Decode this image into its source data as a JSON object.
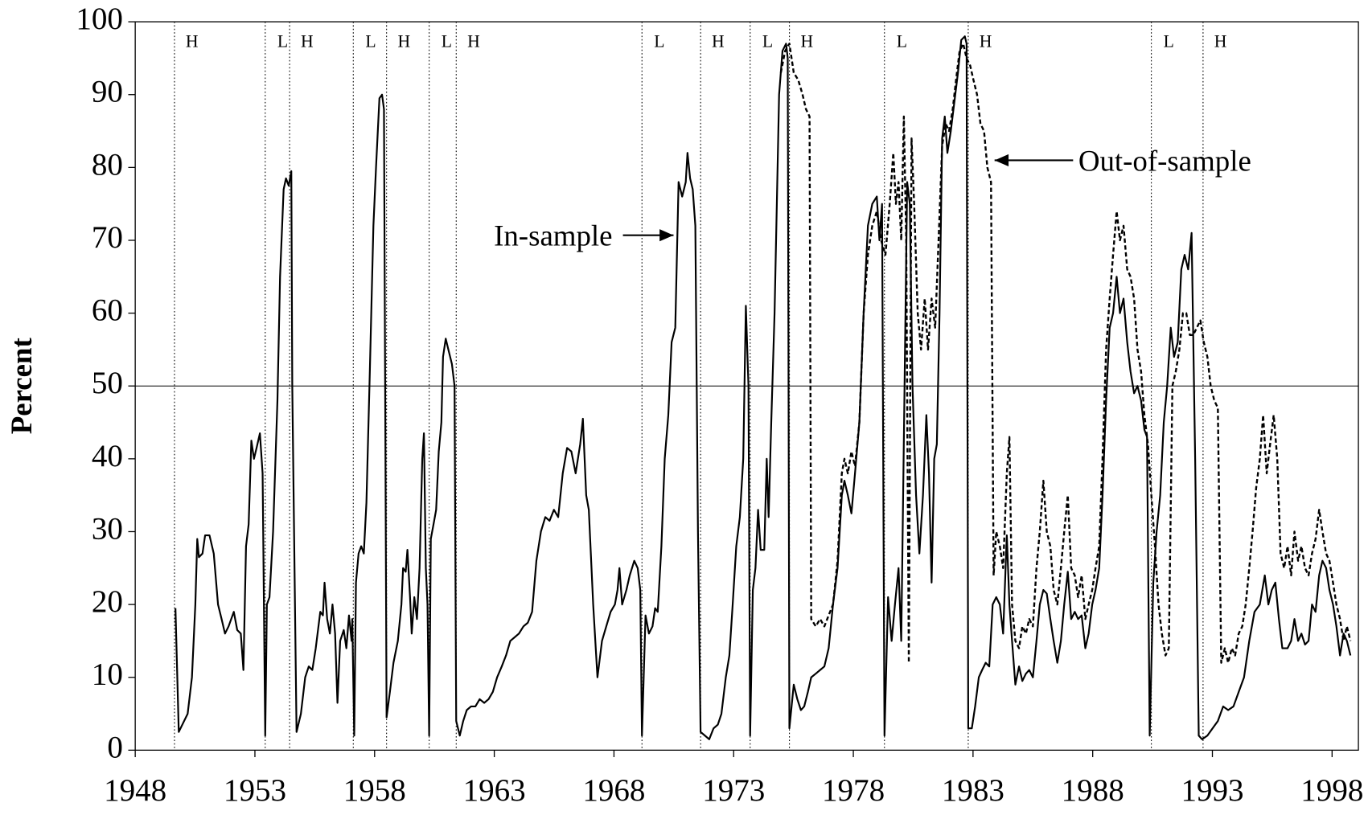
{
  "chart_data": {
    "type": "line",
    "ylabel": "Percent",
    "xlim": [
      1948,
      1999.1
    ],
    "xticks": [
      1948,
      1953,
      1958,
      1963,
      1968,
      1973,
      1978,
      1983,
      1988,
      1993,
      1998
    ],
    "ylim": [
      0,
      100
    ],
    "yticks": [
      0,
      10,
      20,
      30,
      40,
      50,
      60,
      70,
      80,
      90,
      100
    ],
    "reference_line": 50,
    "regimes": [
      {
        "start": 1949.64,
        "label": "H"
      },
      {
        "start": 1953.43,
        "label": "L"
      },
      {
        "start": 1954.45,
        "label": "H"
      },
      {
        "start": 1957.11,
        "label": "L"
      },
      {
        "start": 1958.5,
        "label": "H"
      },
      {
        "start": 1960.28,
        "label": "L"
      },
      {
        "start": 1961.41,
        "label": "H"
      },
      {
        "start": 1969.17,
        "label": "L"
      },
      {
        "start": 1971.62,
        "label": "H"
      },
      {
        "start": 1973.69,
        "label": "L"
      },
      {
        "start": 1975.33,
        "label": "H"
      },
      {
        "start": 1979.3,
        "label": "L"
      },
      {
        "start": 1982.8,
        "label": "H"
      },
      {
        "start": 1990.45,
        "label": "L"
      },
      {
        "start": 1992.61,
        "label": "H"
      }
    ],
    "series": [
      {
        "name": "In-sample",
        "color": "#000000",
        "line_style": "solid",
        "x": [
          1949.68,
          1949.82,
          1950.19,
          1950.37,
          1950.51,
          1950.59,
          1950.66,
          1950.81,
          1950.92,
          1951.1,
          1951.28,
          1951.46,
          1951.61,
          1951.75,
          1951.9,
          1952.12,
          1952.26,
          1952.41,
          1952.52,
          1952.63,
          1952.74,
          1952.85,
          1952.96,
          1953.07,
          1953.21,
          1953.32,
          1953.43,
          1953.5,
          1953.61,
          1953.76,
          1953.94,
          1954.05,
          1954.2,
          1954.3,
          1954.41,
          1954.52,
          1954.56,
          1954.74,
          1954.92,
          1955.1,
          1955.25,
          1955.4,
          1955.54,
          1955.73,
          1955.84,
          1955.91,
          1956.02,
          1956.13,
          1956.24,
          1956.35,
          1956.45,
          1956.56,
          1956.71,
          1956.82,
          1956.93,
          1957.04,
          1957.07,
          1957.15,
          1957.22,
          1957.33,
          1957.44,
          1957.55,
          1957.66,
          1957.8,
          1957.95,
          1958.06,
          1958.2,
          1958.31,
          1958.39,
          1958.5,
          1958.64,
          1958.79,
          1958.97,
          1959.12,
          1959.19,
          1959.3,
          1959.37,
          1959.48,
          1959.55,
          1959.66,
          1959.77,
          1959.88,
          1959.99,
          1960.06,
          1960.14,
          1960.21,
          1960.28,
          1960.35,
          1960.46,
          1960.57,
          1960.68,
          1960.79,
          1960.86,
          1960.97,
          1961.08,
          1961.23,
          1961.34,
          1961.41,
          1961.56,
          1961.7,
          1961.85,
          1962.03,
          1962.21,
          1962.39,
          1962.58,
          1962.76,
          1962.94,
          1963.12,
          1963.31,
          1963.49,
          1963.67,
          1963.85,
          1964.03,
          1964.22,
          1964.4,
          1964.58,
          1964.76,
          1964.95,
          1965.13,
          1965.31,
          1965.49,
          1965.67,
          1965.86,
          1966.04,
          1966.22,
          1966.4,
          1966.59,
          1966.7,
          1966.84,
          1966.95,
          1967.13,
          1967.31,
          1967.5,
          1967.68,
          1967.86,
          1968.04,
          1968.15,
          1968.23,
          1968.34,
          1968.52,
          1968.66,
          1968.85,
          1968.99,
          1969.1,
          1969.17,
          1969.32,
          1969.46,
          1969.61,
          1969.72,
          1969.83,
          1969.98,
          1970.12,
          1970.27,
          1970.41,
          1970.56,
          1970.7,
          1970.85,
          1971.0,
          1971.07,
          1971.18,
          1971.29,
          1971.4,
          1971.51,
          1971.62,
          1971.8,
          1971.98,
          1972.16,
          1972.34,
          1972.49,
          1972.67,
          1972.82,
          1972.96,
          1973.11,
          1973.26,
          1973.4,
          1973.51,
          1973.62,
          1973.69,
          1973.8,
          1973.91,
          1974.02,
          1974.13,
          1974.28,
          1974.38,
          1974.46,
          1974.57,
          1974.71,
          1974.9,
          1975.04,
          1975.19,
          1975.26,
          1975.33,
          1975.51,
          1975.66,
          1975.81,
          1975.95,
          1976.1,
          1976.24,
          1976.43,
          1976.61,
          1976.79,
          1976.97,
          1977.15,
          1977.34,
          1977.52,
          1977.63,
          1977.77,
          1977.92,
          1978.07,
          1978.25,
          1978.43,
          1978.61,
          1978.79,
          1978.98,
          1979.09,
          1979.2,
          1979.3,
          1979.45,
          1979.6,
          1979.74,
          1979.89,
          1980.0,
          1980.14,
          1980.25,
          1980.36,
          1980.47,
          1980.62,
          1980.76,
          1980.91,
          1981.05,
          1981.16,
          1981.27,
          1981.38,
          1981.49,
          1981.6,
          1981.71,
          1981.82,
          1981.93,
          1982.07,
          1982.22,
          1982.37,
          1982.51,
          1982.66,
          1982.73,
          1982.8,
          1982.95,
          1983.09,
          1983.24,
          1983.38,
          1983.53,
          1983.68,
          1983.82,
          1983.97,
          1984.12,
          1984.26,
          1984.41,
          1984.52,
          1984.63,
          1984.77,
          1984.92,
          1985.06,
          1985.21,
          1985.35,
          1985.5,
          1985.65,
          1985.79,
          1985.94,
          1986.08,
          1986.23,
          1986.37,
          1986.52,
          1986.67,
          1986.81,
          1986.96,
          1987.1,
          1987.25,
          1987.39,
          1987.54,
          1987.69,
          1987.83,
          1987.98,
          1988.12,
          1988.27,
          1988.41,
          1988.56,
          1988.71,
          1988.85,
          1989.0,
          1989.14,
          1989.29,
          1989.44,
          1989.58,
          1989.73,
          1989.87,
          1990.02,
          1990.16,
          1990.27,
          1990.38,
          1990.53,
          1990.67,
          1990.82,
          1990.97,
          1991.11,
          1991.26,
          1991.4,
          1991.55,
          1991.7,
          1991.84,
          1991.99,
          1992.13,
          1992.28,
          1992.43,
          1992.57,
          1992.79,
          1993.01,
          1993.23,
          1993.45,
          1993.66,
          1993.88,
          1994.1,
          1994.32,
          1994.54,
          1994.76,
          1994.98,
          1995.19,
          1995.34,
          1995.48,
          1995.63,
          1995.78,
          1995.92,
          1996.14,
          1996.29,
          1996.43,
          1996.58,
          1996.72,
          1996.87,
          1997.02,
          1997.16,
          1997.31,
          1997.46,
          1997.6,
          1997.75,
          1997.89,
          1998.04,
          1998.18,
          1998.33,
          1998.48,
          1998.62,
          1998.77
        ],
        "values": [
          19.5,
          2.5,
          5,
          10,
          20,
          29,
          26.5,
          27,
          29.5,
          29.5,
          27,
          20,
          18,
          16,
          17,
          19,
          16.5,
          16,
          11,
          28,
          31,
          42.5,
          40,
          41.5,
          43.5,
          38,
          2,
          20,
          21,
          30,
          48,
          65,
          77,
          78.5,
          77.5,
          79.5,
          50,
          2.5,
          5,
          10,
          11.5,
          11,
          14,
          19,
          18.5,
          23,
          18,
          16,
          20,
          16,
          6.5,
          15,
          16.5,
          14,
          18.5,
          15,
          18,
          2,
          23,
          27,
          28,
          27,
          34,
          52,
          72,
          80,
          89.5,
          90,
          88,
          4.5,
          8,
          12,
          15,
          20,
          25,
          24.5,
          27.5,
          21,
          16,
          21,
          18,
          25,
          40,
          43.5,
          25,
          20,
          2,
          29,
          31,
          33,
          41,
          45,
          54,
          56.5,
          55,
          53,
          50,
          4,
          2,
          4,
          5.5,
          6,
          6,
          7,
          6.5,
          7,
          8,
          10,
          11.5,
          13,
          15,
          15.5,
          16,
          17,
          17.5,
          19,
          26,
          30,
          32,
          31.5,
          33,
          32,
          38,
          41.5,
          41,
          38,
          42,
          45.5,
          35,
          33,
          20,
          10,
          15,
          17,
          19,
          20,
          22,
          25,
          20,
          22,
          24,
          26,
          25,
          22,
          2,
          18.5,
          16,
          17,
          19.5,
          19,
          28,
          40,
          46,
          56,
          58,
          78,
          76,
          78,
          82,
          78.5,
          77,
          72,
          30,
          2.5,
          2,
          1.5,
          3,
          3.5,
          5,
          10,
          13,
          20,
          28,
          32,
          40,
          61,
          50,
          2,
          22,
          25,
          33,
          27.5,
          27.5,
          40,
          32,
          45,
          60,
          90,
          96,
          97,
          95,
          3,
          9,
          7,
          5.5,
          6,
          8,
          10,
          10.5,
          11,
          11.5,
          14,
          20,
          25,
          35,
          37,
          35,
          32.5,
          38,
          45,
          60,
          72,
          75,
          76,
          70,
          75,
          2,
          21,
          15,
          20,
          25,
          15,
          50,
          78,
          75,
          50,
          35,
          27,
          35,
          46,
          38,
          23,
          40,
          42,
          60,
          84,
          87,
          82,
          85,
          89,
          93,
          97.5,
          98,
          97,
          3,
          3,
          6,
          10,
          11,
          12,
          11.5,
          20,
          21,
          20,
          16,
          29.5,
          20,
          15,
          9,
          11.5,
          9.5,
          10.5,
          11,
          10,
          15,
          20,
          22,
          21.5,
          18,
          15,
          12,
          15,
          20,
          24.5,
          18,
          19,
          18,
          18.5,
          14,
          16,
          20,
          22,
          25,
          35,
          48,
          58,
          60,
          65,
          60,
          62,
          56,
          52,
          49,
          50,
          48,
          44,
          43,
          2,
          23,
          30,
          35,
          45,
          50,
          58,
          54,
          56,
          66,
          68,
          66,
          71,
          40,
          2,
          1.5,
          2,
          3,
          4,
          6,
          5.5,
          6,
          8,
          10,
          15,
          19,
          20,
          24,
          20,
          22,
          23,
          18,
          14,
          14,
          15,
          18,
          15,
          16,
          14.5,
          15,
          20,
          19,
          24,
          26,
          25,
          22,
          20,
          17,
          13,
          16,
          15,
          13
        ]
      },
      {
        "name": "Out-of-sample",
        "color": "#000000",
        "line_style": "dashed",
        "x": [
          1974.97,
          1975.15,
          1975.33,
          1975.51,
          1975.7,
          1975.88,
          1976.02,
          1976.17,
          1976.24,
          1976.43,
          1976.61,
          1976.79,
          1976.97,
          1977.15,
          1977.34,
          1977.52,
          1977.63,
          1977.77,
          1977.92,
          1978.07,
          1978.25,
          1978.43,
          1978.61,
          1978.79,
          1978.98,
          1979.16,
          1979.34,
          1979.52,
          1979.67,
          1979.78,
          1979.89,
          1980.0,
          1980.11,
          1980.21,
          1980.32,
          1980.43,
          1980.54,
          1980.69,
          1980.83,
          1980.98,
          1981.12,
          1981.27,
          1981.42,
          1981.56,
          1981.71,
          1981.86,
          1982.0,
          1982.15,
          1982.29,
          1982.44,
          1982.59,
          1982.73,
          1982.88,
          1983.02,
          1983.17,
          1983.31,
          1983.46,
          1983.6,
          1983.75,
          1983.86,
          1983.97,
          1984.12,
          1984.26,
          1984.41,
          1984.52,
          1984.63,
          1984.77,
          1984.92,
          1985.06,
          1985.21,
          1985.35,
          1985.5,
          1985.65,
          1985.79,
          1985.94,
          1986.08,
          1986.23,
          1986.37,
          1986.52,
          1986.67,
          1986.81,
          1986.96,
          1987.1,
          1987.25,
          1987.39,
          1987.54,
          1987.69,
          1987.83,
          1987.98,
          1988.12,
          1988.27,
          1988.41,
          1988.56,
          1988.71,
          1988.85,
          1989.0,
          1989.14,
          1989.29,
          1989.44,
          1989.58,
          1989.73,
          1989.87,
          1990.02,
          1990.16,
          1990.31,
          1990.45,
          1990.6,
          1990.75,
          1990.89,
          1991.04,
          1991.18,
          1991.33,
          1991.47,
          1991.62,
          1991.77,
          1991.91,
          1992.06,
          1992.2,
          1992.35,
          1992.5,
          1992.64,
          1992.79,
          1992.93,
          1993.08,
          1993.23,
          1993.37,
          1993.52,
          1993.66,
          1993.81,
          1993.95,
          1994.1,
          1994.25,
          1994.39,
          1994.54,
          1994.68,
          1994.83,
          1994.98,
          1995.12,
          1995.27,
          1995.41,
          1995.56,
          1995.71,
          1995.85,
          1996.0,
          1996.14,
          1996.29,
          1996.43,
          1996.58,
          1996.72,
          1996.87,
          1997.02,
          1997.16,
          1997.31,
          1997.46,
          1997.6,
          1997.75,
          1997.89,
          1998.04,
          1998.18,
          1998.33,
          1998.48,
          1998.62,
          1998.77
        ],
        "values": [
          93,
          96,
          97,
          93,
          92,
          90,
          88,
          87,
          18,
          17,
          18,
          17,
          18.5,
          20,
          26,
          38,
          40,
          38,
          41,
          39,
          45,
          60,
          68,
          72,
          74,
          70,
          68,
          75,
          82,
          75,
          78,
          70,
          87,
          70,
          12,
          84,
          75,
          60,
          55,
          62,
          55,
          62,
          58,
          70,
          83,
          86,
          85,
          88,
          92,
          96,
          97,
          95,
          94,
          92,
          90,
          86,
          85,
          80,
          78,
          24,
          30,
          28,
          25,
          38,
          43,
          20,
          15,
          14,
          17,
          16,
          18,
          17,
          25,
          30,
          37,
          30,
          28,
          22,
          20,
          25,
          30,
          35,
          25,
          24,
          21,
          24,
          18,
          20,
          22,
          25,
          28,
          40,
          55,
          62,
          68,
          74,
          70,
          72,
          66,
          65,
          62,
          55,
          52,
          46,
          42,
          35,
          28,
          20,
          16,
          13,
          14,
          50,
          52,
          55,
          60,
          60,
          57,
          57,
          58,
          59,
          56,
          54,
          50,
          48,
          47,
          12,
          14,
          12,
          14,
          13,
          16,
          17,
          20,
          25,
          30,
          36,
          40,
          46,
          38,
          42,
          46,
          40,
          27,
          25,
          28,
          24,
          30,
          26,
          28,
          25,
          24,
          27,
          29,
          33,
          30,
          27,
          26,
          23,
          20,
          18,
          15,
          17,
          15
        ]
      }
    ]
  }
}
